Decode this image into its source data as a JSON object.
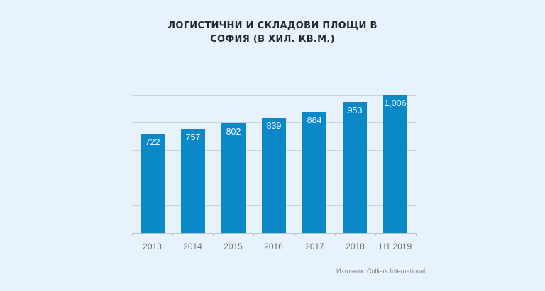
{
  "title": {
    "line1": "ЛОГИСТИЧНИ И СКЛАДОВИ ПЛОЩИ В",
    "line2": "СОФИЯ (В ХИЛ. КВ.М.)"
  },
  "source": "Източник: Colliers International",
  "colors": {
    "background": "#e8f2fb",
    "bar": "#0a88c8",
    "bar_label": "#e8f4fc",
    "gridline": "#c9d3dc",
    "axis_label": "#6a7178"
  },
  "chart_data": {
    "type": "bar",
    "title": "Логистични и складови площи в София (в хил. кв.м.)",
    "categories": [
      "2013",
      "2014",
      "2015",
      "2016",
      "2017",
      "2018",
      "H1 2019"
    ],
    "values": [
      722,
      757,
      802,
      839,
      884,
      953,
      1006
    ],
    "value_labels": [
      "722",
      "757",
      "802",
      "839",
      "884",
      "953",
      "1,006"
    ],
    "xlabel": "",
    "ylabel": "",
    "grid": true,
    "y_axis_visible": false,
    "legend": null,
    "source": "Източник: Colliers International"
  }
}
